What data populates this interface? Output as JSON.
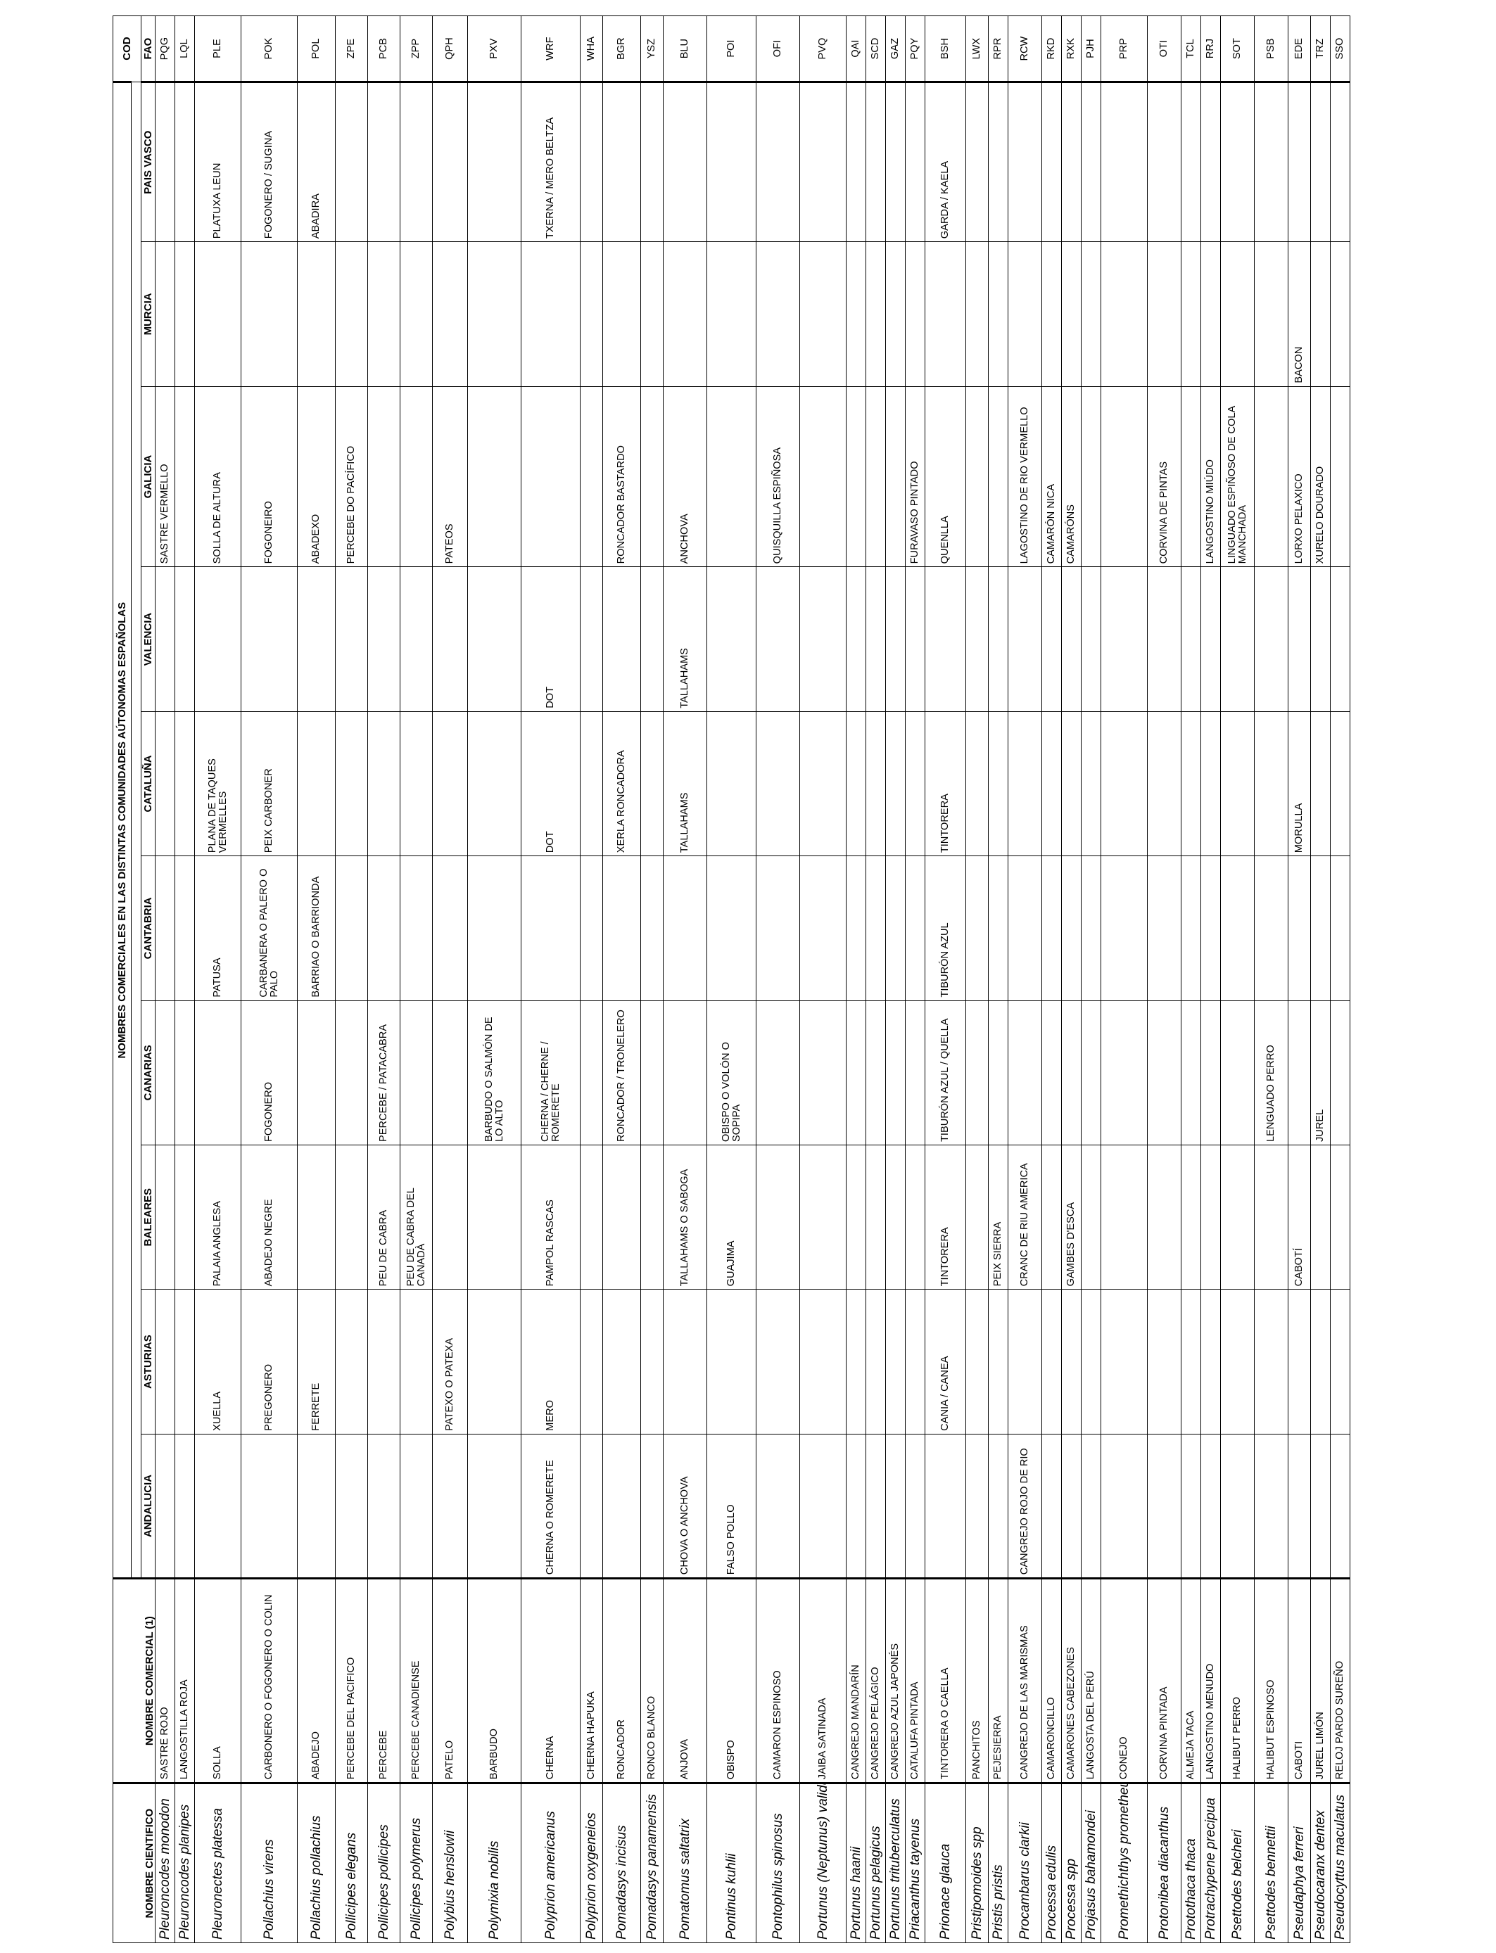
{
  "headers": {
    "scientific": "NOMBRE CIENTIFICO",
    "commercial": "NOMBRE COMERCIAL (1)",
    "group": "NOMBRES COMERCIALES EN LAS DISTINTAS COMUNIDADES AÚTONOMAS ESPAÑOLAS",
    "regions": [
      "ANDALUCIA",
      "ASTURIAS",
      "BALEARES",
      "CANARIAS",
      "CANTABRIA",
      "CATALUÑA",
      "VALENCIA",
      "GALICIA",
      "MURCIA",
      "PAIS VASCO"
    ],
    "cod": "COD",
    "fao": "FAO"
  },
  "rows": [
    {
      "sci": "Pleuroncodes monodon",
      "com": "SASTRE ROJO",
      "reg": [
        "",
        "",
        "",
        "",
        "",
        "",
        "",
        "SASTRE VERMELLO",
        "",
        ""
      ],
      "fao": "PQG"
    },
    {
      "sci": "Pleuroncodes planipes",
      "com": "LANGOSTILLA ROJA",
      "reg": [
        "",
        "",
        "",
        "",
        "",
        "",
        "",
        "",
        "",
        ""
      ],
      "fao": "LQL"
    },
    {
      "sci": "Pleuronectes platessa",
      "com": "SOLLA",
      "reg": [
        "",
        "XUELLA",
        "PALAIA ANGLESA",
        "",
        "PATUSA",
        "PLANA DE TAQUES VERMELLES",
        "",
        "SOLLA DE ALTURA",
        "",
        "PLATUXA LEUN"
      ],
      "fao": "PLE"
    },
    {
      "sci": "Pollachius  virens",
      "com": "CARBONERO O FOGONERO O COLIN",
      "reg": [
        "",
        "PREGONERO",
        "ABADEJO NEGRE",
        "FOGONERO",
        "CARBANERA O PALERO O PALO",
        "PEIX CARBONER",
        "",
        "FOGONEIRO",
        "",
        "FOGONERO / SUGINA"
      ],
      "fao": "POK"
    },
    {
      "sci": "Pollachius pollachius",
      "com": "ABADEJO",
      "reg": [
        "",
        "FERRETE",
        "",
        "",
        "BARRIAO O BARRIONDA",
        "",
        "",
        "ABADEXO",
        "",
        "ABADIRA"
      ],
      "fao": "POL"
    },
    {
      "sci": "Pollicipes elegans",
      "com": "PERCEBE DEL PACIFICO",
      "reg": [
        "",
        "",
        "",
        "",
        "",
        "",
        "",
        "PERCEBE DO PACÍFICO",
        "",
        ""
      ],
      "fao": "ZPE"
    },
    {
      "sci": "Pollicipes pollicipes",
      "com": "PERCEBE",
      "reg": [
        "",
        "",
        "PEU DE CABRA",
        "PERCEBE / PATACABRA",
        "",
        "",
        "",
        "",
        "",
        ""
      ],
      "fao": "PCB"
    },
    {
      "sci": "Pollicipes polymerus",
      "com": "PERCEBE CANADIENSE",
      "reg": [
        "",
        "",
        "PEU DE CABRA DEL CANADÀ",
        "",
        "",
        "",
        "",
        "",
        "",
        ""
      ],
      "fao": "ZPP"
    },
    {
      "sci": "Polybius henslowii",
      "com": "PATELO",
      "reg": [
        "",
        "PATEXO O PATEXA",
        "",
        "",
        "",
        "",
        "",
        "PATEOS",
        "",
        ""
      ],
      "fao": "QPH"
    },
    {
      "sci": "Polymixia nobilis",
      "com": "BARBUDO",
      "reg": [
        "",
        "",
        "",
        "BARBUDO O SALMÓN DE LO ALTO",
        "",
        "",
        "",
        "",
        "",
        ""
      ],
      "fao": "PXV"
    },
    {
      "sci": "Polyprion americanus",
      "com": "CHERNA",
      "reg": [
        "CHERNA O ROMERETE",
        "MERO",
        "PAMPOL RASCAS",
        "CHERNA / CHERNE / ROMERETE",
        "",
        "DOT",
        "DOT",
        "",
        "",
        "TXERNA / MERO BELTZA"
      ],
      "fao": "WRF"
    },
    {
      "sci": "Polyprion oxygeneios",
      "com": "CHERNA HAPUKA",
      "reg": [
        "",
        "",
        "",
        "",
        "",
        "",
        "",
        "",
        "",
        ""
      ],
      "fao": "WHA"
    },
    {
      "sci": "Pomadasys incisus",
      "com": "RONCADOR",
      "reg": [
        "",
        "",
        "",
        "RONCADOR / TRONELERO",
        "",
        "XERLA RONCADORA",
        "",
        "RONCADOR BASTARDO",
        "",
        ""
      ],
      "fao": "BGR"
    },
    {
      "sci": "Pomadasys panamensis",
      "com": "RONCO BLANCO",
      "reg": [
        "",
        "",
        "",
        "",
        "",
        "",
        "",
        "",
        "",
        ""
      ],
      "fao": "YSZ"
    },
    {
      "sci": "Pomatomus saltatrix",
      "com": "ANJOVA",
      "reg": [
        "CHOVA O ANCHOVA",
        "",
        "TALLAHAMS O SABOGA",
        "",
        "",
        "TALLAHAMS",
        "TALLAHAMS",
        "ANCHOVA",
        "",
        ""
      ],
      "fao": "BLU"
    },
    {
      "sci": "Pontinus kuhlii",
      "com": "OBISPO",
      "reg": [
        "FALSO POLLO",
        "",
        "GUAJIMA",
        "OBISPO O VOLÓN O SOPIPA",
        "",
        "",
        "",
        "",
        "",
        ""
      ],
      "fao": "POI"
    },
    {
      "sci": "Pontophilus  spinosus",
      "com": "CAMARON ESPINOSO",
      "reg": [
        "",
        "",
        "",
        "",
        "",
        "",
        "",
        "QUISQUILLA ESPIÑOSA",
        "",
        ""
      ],
      "fao": "OFI"
    },
    {
      "sci": "Portunus (Neptunus) validus",
      "com": "JAIBA SATINADA",
      "reg": [
        "",
        "",
        "",
        "",
        "",
        "",
        "",
        "",
        "",
        ""
      ],
      "fao": "PVQ"
    },
    {
      "sci": "Portunus haanii",
      "com": "CANGREJO MANDARÍN",
      "reg": [
        "",
        "",
        "",
        "",
        "",
        "",
        "",
        "",
        "",
        ""
      ],
      "fao": "QAI"
    },
    {
      "sci": "Portunus pelagicus",
      "com": "CANGREJO PELÁGICO",
      "reg": [
        "",
        "",
        "",
        "",
        "",
        "",
        "",
        "",
        "",
        ""
      ],
      "fao": "SCD"
    },
    {
      "sci": "Portunus trituberculatus",
      "com": "CANGREJO AZUL JAPONÉS",
      "reg": [
        "",
        "",
        "",
        "",
        "",
        "",
        "",
        "",
        "",
        ""
      ],
      "fao": "GAZ"
    },
    {
      "sci": "Priacanthus tayenus",
      "com": "CATALUFA PINTADA",
      "reg": [
        "",
        "",
        "",
        "",
        "",
        "",
        "",
        "FURAVASO PINTADO",
        "",
        ""
      ],
      "fao": "PQY"
    },
    {
      "sci": "Prionace glauca",
      "com": "TINTORERA O CAELLA",
      "reg": [
        "",
        "CANIA / CANEA",
        "TINTORERA",
        "TIBURÓN AZUL / QUELLA",
        "TIBURÓN AZUL",
        "TINTORERA",
        "",
        "QUENLLA",
        "",
        "GARDA / KAELA"
      ],
      "fao": "BSH"
    },
    {
      "sci": "Pristipomoides  spp",
      "com": "PANCHITOS",
      "reg": [
        "",
        "",
        "",
        "",
        "",
        "",
        "",
        "",
        "",
        ""
      ],
      "fao": "LWX"
    },
    {
      "sci": "Pristis pristis",
      "com": "PEJESIERRA",
      "reg": [
        "",
        "",
        "PEIX SIERRA",
        "",
        "",
        "",
        "",
        "",
        "",
        ""
      ],
      "fao": "RPR"
    },
    {
      "sci": "Procambarus clarkii",
      "com": "CANGREJO DE LAS MARISMAS",
      "reg": [
        "CANGREJO ROJO DE RIO",
        "",
        "CRANC DE RIU AMERICA",
        "",
        "",
        "",
        "",
        "LAGOSTINO DE RIO VERMELLO",
        "",
        ""
      ],
      "fao": "RCW"
    },
    {
      "sci": "Processa edulis",
      "com": "CAMARONCILLO",
      "reg": [
        "",
        "",
        "",
        "",
        "",
        "",
        "",
        "CAMARÓN NICA",
        "",
        ""
      ],
      "fao": "RKD"
    },
    {
      "sci": "Processa  spp",
      "com": "CAMARONES CABEZONES",
      "reg": [
        "",
        "",
        "GAMBES D'ESCA",
        "",
        "",
        "",
        "",
        "CAMARÓNS",
        "",
        ""
      ],
      "fao": "RXK"
    },
    {
      "sci": "Projasus bahamondei",
      "com": "LANGOSTA DEL PERÚ",
      "reg": [
        "",
        "",
        "",
        "",
        "",
        "",
        "",
        "",
        "",
        ""
      ],
      "fao": "PJH"
    },
    {
      "sci": "Promethichthys prometheus",
      "com": "CONEJO",
      "reg": [
        "",
        "",
        "",
        "",
        "",
        "",
        "",
        "",
        "",
        ""
      ],
      "fao": "PRP"
    },
    {
      "sci": "Protonibea diacanthus",
      "com": "CORVINA PINTADA",
      "reg": [
        "",
        "",
        "",
        "",
        "",
        "",
        "",
        "CORVINA DE PINTAS",
        "",
        ""
      ],
      "fao": "OTI"
    },
    {
      "sci": "Protothaca thaca",
      "com": "ALMEJA TACA",
      "reg": [
        "",
        "",
        "",
        "",
        "",
        "",
        "",
        "",
        "",
        ""
      ],
      "fao": "TCL"
    },
    {
      "sci": "Protrachypene precipua",
      "com": "LANGOSTINO MENUDO",
      "reg": [
        "",
        "",
        "",
        "",
        "",
        "",
        "",
        "LANGOSTINO MIÚDO",
        "",
        ""
      ],
      "fao": "RRJ"
    },
    {
      "sci": "Psettodes belcheri",
      "com": "HALIBUT PERRO",
      "reg": [
        "",
        "",
        "",
        "",
        "",
        "",
        "",
        "LINGUADO ESPIÑOSO DE COLA MANCHADA",
        "",
        ""
      ],
      "fao": "SOT"
    },
    {
      "sci": "Psettodes bennettii",
      "com": "HALIBUT ESPINOSO",
      "reg": [
        "",
        "",
        "",
        "LENGUADO PERRO",
        "",
        "",
        "",
        "",
        "",
        ""
      ],
      "fao": "PSB"
    },
    {
      "sci": "Pseudaphya ferreri",
      "com": "CABOTI",
      "reg": [
        "",
        "",
        "CABOTÍ",
        "",
        "",
        "MORULLA",
        "",
        "LORXO PELAXICO",
        "BACON",
        ""
      ],
      "fao": "EDE"
    },
    {
      "sci": "Pseudocaranx dentex",
      "com": "JUREL LIMÓN",
      "reg": [
        "",
        "",
        "",
        "JUREL",
        "",
        "",
        "",
        "XURELO DOURADO",
        "",
        ""
      ],
      "fao": "TRZ"
    },
    {
      "sci": "Pseudocyttus maculatus",
      "com": "RELOJ PARDO SUREÑO",
      "reg": [
        "",
        "",
        "",
        "",
        "",
        "",
        "",
        "",
        "",
        ""
      ],
      "fao": "SSO"
    }
  ]
}
